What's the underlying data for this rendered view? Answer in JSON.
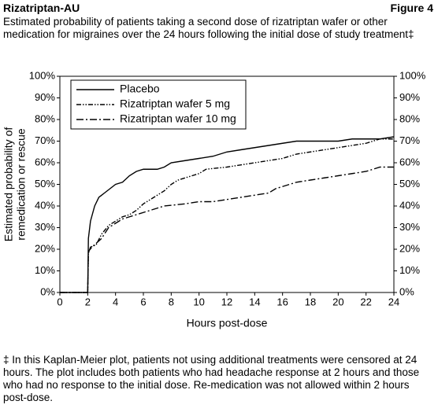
{
  "chart_data": {
    "type": "line",
    "header": "Rizatriptan-AU",
    "figure_label": "Figure 4",
    "title": "Estimated probability of patients taking a second dose of rizatriptan wafer or other medication for migraines over the 24 hours following the initial dose of study treatment‡",
    "xlabel": "Hours post-dose",
    "ylabel": [
      "Estimated probability of",
      "remedication or rescue"
    ],
    "footnote": "‡ In this Kaplan-Meier plot, patients not using additional treatments were censored at 24 hours. The plot includes both patients who had headache response at 2 hours and those who had no response to the initial dose. Re-medication was not allowed within 2 hours post-dose.",
    "xlim": [
      0,
      24
    ],
    "xticks": [
      0,
      2,
      4,
      6,
      8,
      10,
      12,
      14,
      16,
      18,
      20,
      22,
      24
    ],
    "ylim": [
      0,
      100
    ],
    "yticks": [
      {
        "value": 0,
        "label": "0%"
      },
      {
        "value": 10,
        "label": "10%"
      },
      {
        "value": 20,
        "label": "20%"
      },
      {
        "value": 30,
        "label": "30%"
      },
      {
        "value": 40,
        "label": "40%"
      },
      {
        "value": 50,
        "label": "50%"
      },
      {
        "value": 60,
        "label": "60%"
      },
      {
        "value": 70,
        "label": "70%"
      },
      {
        "value": 80,
        "label": "80%"
      },
      {
        "value": 90,
        "label": "90%"
      },
      {
        "value": 100,
        "label": "100%"
      }
    ],
    "legend": "upper left",
    "series": [
      {
        "name": "Placebo",
        "color": "#000000",
        "linestyle": "solid",
        "x": [
          0,
          2,
          2.05,
          2.2,
          2.5,
          2.8,
          3.2,
          3.6,
          4,
          4.5,
          5,
          5.5,
          6,
          7,
          7.5,
          8,
          9,
          10,
          11,
          12,
          13,
          14,
          15,
          16,
          17,
          18,
          20,
          21,
          22,
          23,
          24
        ],
        "values": [
          0,
          0,
          25,
          33,
          40,
          44,
          46,
          48,
          50,
          51,
          54,
          56,
          57,
          57,
          58,
          60,
          61,
          62,
          63,
          65,
          66,
          67,
          68,
          69,
          70,
          70,
          70,
          71,
          71,
          71,
          72
        ]
      },
      {
        "name": "Rizatriptan wafer 5 mg",
        "color": "#000000",
        "linestyle": "dashdotdot",
        "x": [
          0,
          2,
          2.05,
          2.2,
          2.6,
          3,
          3.5,
          4,
          4.5,
          5,
          5.5,
          6,
          6.5,
          7,
          7.5,
          8,
          8.5,
          9,
          10,
          10.5,
          12,
          14,
          16,
          17,
          18,
          19,
          20,
          21,
          22,
          23,
          24
        ],
        "values": [
          0,
          0,
          18,
          21,
          22,
          27,
          31,
          33,
          35,
          36,
          38,
          41,
          43,
          45,
          47,
          50,
          52,
          53,
          55,
          57,
          58,
          60,
          62,
          64,
          65,
          66,
          67,
          68,
          69,
          71,
          71
        ]
      },
      {
        "name": "Rizatriptan wafer 10 mg",
        "color": "#000000",
        "linestyle": "dashdot",
        "x": [
          0,
          2,
          2.05,
          2.3,
          3,
          3.5,
          4,
          4.5,
          5,
          5.5,
          6,
          6.5,
          7,
          7.5,
          9,
          10,
          11,
          12,
          13,
          14,
          15,
          15.5,
          16,
          17,
          18,
          19,
          20,
          21,
          22,
          23,
          24
        ],
        "values": [
          0,
          0,
          19,
          21,
          25,
          30,
          32,
          34,
          35,
          36,
          37,
          38,
          39,
          40,
          41,
          42,
          42,
          43,
          44,
          45,
          46,
          48,
          49,
          51,
          52,
          53,
          54,
          55,
          56,
          58,
          58
        ]
      }
    ]
  }
}
